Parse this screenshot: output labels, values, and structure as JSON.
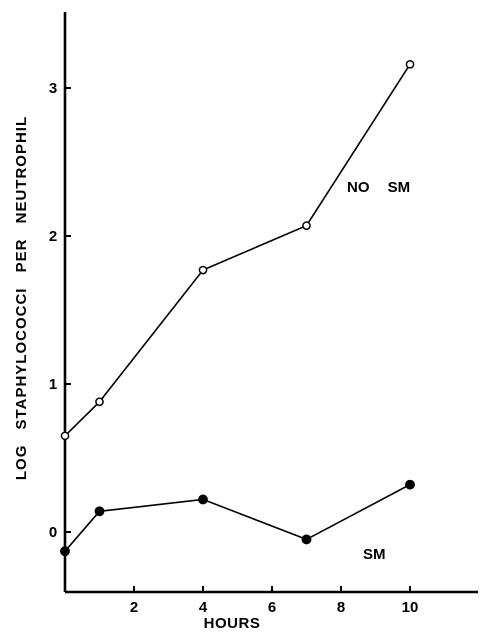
{
  "chart_data": {
    "type": "line",
    "title": "",
    "xlabel": "HOURS",
    "ylabel": "LOG STAPHYLOCOCCI PER NEUTROPHIL",
    "xlim": [
      0,
      12
    ],
    "ylim": [
      -0.3,
      3.5
    ],
    "xticks": [
      2,
      4,
      6,
      8,
      10
    ],
    "yticks": [
      0,
      1,
      2,
      3
    ],
    "xtick_labels": [
      "2",
      "4",
      "6",
      "8",
      "10"
    ],
    "ytick_labels": [
      "0",
      "1",
      "2",
      "3"
    ],
    "grid": false,
    "legend": "none (series labeled inline)",
    "series": [
      {
        "name": "NO SM",
        "marker": "open-circle",
        "x": [
          0,
          1,
          4,
          7,
          10
        ],
        "y": [
          0.65,
          0.88,
          1.77,
          2.07,
          3.16
        ]
      },
      {
        "name": "SM",
        "marker": "filled-circle",
        "x": [
          0,
          1,
          4,
          7,
          10
        ],
        "y": [
          -0.13,
          0.14,
          0.22,
          -0.05,
          0.32
        ]
      }
    ],
    "colors": {
      "line": "#000000",
      "background": "#ffffff"
    }
  }
}
